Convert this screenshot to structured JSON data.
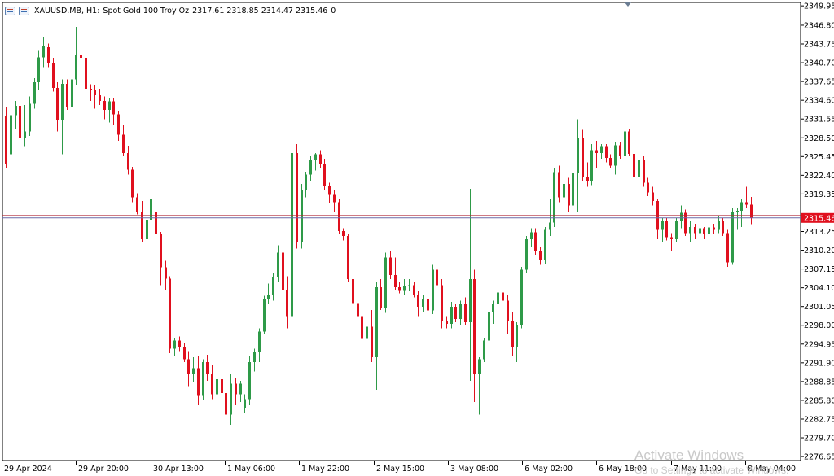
{
  "header": {
    "symbol": "XAUUSD.MB, H1:",
    "description": "Spot Gold 100 Troy Oz",
    "ohlc": "2317.61 2318.85 2314.47 2315.46",
    "volume": "0"
  },
  "watermark": {
    "line1": "Activate Windows",
    "line2": "Go to Settings to activate Windows."
  },
  "colors": {
    "bull": "#2e9a48",
    "bear": "#e0101e",
    "bid_line": "#6a6aa8",
    "ask_line": "#b02a3a",
    "price_tag": "#e0101e"
  },
  "chart_data": {
    "type": "candlestick",
    "symbol": "XAUUSD.MB",
    "timeframe": "H1",
    "ylim": [
      2276.0,
      2350.5
    ],
    "y_ticks": [
      2349.95,
      2346.8,
      2343.75,
      2340.7,
      2337.65,
      2334.6,
      2331.55,
      2328.5,
      2325.45,
      2322.4,
      2319.35,
      2313.25,
      2310.2,
      2307.15,
      2304.1,
      2301.05,
      2298.0,
      2294.95,
      2291.9,
      2288.85,
      2285.8,
      2282.75,
      2279.7,
      2276.65
    ],
    "x_labels": [
      "29 Apr 2024",
      "29 Apr 20:00",
      "30 Apr 13:00",
      "1 May 06:00",
      "1 May 22:00",
      "2 May 15:00",
      "3 May 08:00",
      "6 May 02:00",
      "6 May 18:00",
      "7 May 11:00",
      "8 May 04:00"
    ],
    "last_price": "2315.46",
    "bid": 2315.46,
    "ask": 2315.85,
    "ohlc": [
      [
        2332.0,
        2333.5,
        2323.5,
        2324.3
      ],
      [
        2325.8,
        2333.1,
        2325.0,
        2332.2
      ],
      [
        2332.2,
        2334.5,
        2330.0,
        2333.7
      ],
      [
        2333.7,
        2334.2,
        2327.5,
        2328.4
      ],
      [
        2328.4,
        2333.8,
        2327.0,
        2329.5
      ],
      [
        2329.5,
        2335.2,
        2328.8,
        2334.0
      ],
      [
        2334.0,
        2338.2,
        2333.2,
        2337.5
      ],
      [
        2337.5,
        2342.6,
        2336.2,
        2341.6
      ],
      [
        2341.6,
        2344.8,
        2340.0,
        2343.5
      ],
      [
        2343.2,
        2343.8,
        2340.0,
        2340.6
      ],
      [
        2340.6,
        2341.5,
        2336.0,
        2336.6
      ],
      [
        2336.6,
        2337.5,
        2329.5,
        2331.3
      ],
      [
        2331.3,
        2338.0,
        2325.8,
        2337.3
      ],
      [
        2337.3,
        2338.0,
        2333.0,
        2333.5
      ],
      [
        2333.5,
        2338.5,
        2332.8,
        2338.0
      ],
      [
        2338.0,
        2346.5,
        2337.0,
        2342.0
      ],
      [
        2342.0,
        2346.8,
        2337.2,
        2341.5
      ],
      [
        2341.5,
        2342.0,
        2335.8,
        2336.5
      ],
      [
        2336.5,
        2337.2,
        2334.5,
        2336.3
      ],
      [
        2336.3,
        2337.0,
        2333.2,
        2335.4
      ],
      [
        2335.4,
        2336.5,
        2333.8,
        2334.5
      ],
      [
        2334.5,
        2335.2,
        2331.5,
        2333.0
      ],
      [
        2333.0,
        2335.0,
        2331.0,
        2334.4
      ],
      [
        2334.4,
        2335.0,
        2330.5,
        2332.3
      ],
      [
        2332.3,
        2332.8,
        2328.0,
        2329.0
      ],
      [
        2329.0,
        2330.5,
        2325.5,
        2326.0
      ],
      [
        2326.0,
        2327.2,
        2322.5,
        2323.3
      ],
      [
        2323.3,
        2323.8,
        2318.0,
        2318.8
      ],
      [
        2318.8,
        2319.5,
        2316.0,
        2316.5
      ],
      [
        2316.5,
        2318.2,
        2311.5,
        2312.0
      ],
      [
        2312.0,
        2315.8,
        2311.2,
        2315.2
      ],
      [
        2315.2,
        2319.0,
        2314.0,
        2318.5
      ],
      [
        2316.5,
        2318.5,
        2312.0,
        2312.8
      ],
      [
        2312.8,
        2313.2,
        2304.5,
        2307.4
      ],
      [
        2307.4,
        2308.5,
        2303.8,
        2305.6
      ],
      [
        2305.6,
        2306.0,
        2293.5,
        2294.2
      ],
      [
        2294.2,
        2296.0,
        2293.0,
        2295.5
      ],
      [
        2295.5,
        2296.2,
        2293.8,
        2294.5
      ],
      [
        2294.5,
        2295.2,
        2292.0,
        2292.5
      ],
      [
        2292.5,
        2293.8,
        2288.0,
        2290.0
      ],
      [
        2290.0,
        2292.8,
        2288.8,
        2291.0
      ],
      [
        2291.0,
        2293.0,
        2285.0,
        2286.5
      ],
      [
        2286.5,
        2292.5,
        2285.8,
        2292.0
      ],
      [
        2292.0,
        2293.2,
        2289.0,
        2290.0
      ],
      [
        2290.0,
        2291.5,
        2286.0,
        2286.8
      ],
      [
        2286.8,
        2289.8,
        2286.5,
        2289.2
      ],
      [
        2289.2,
        2289.5,
        2285.5,
        2287.0
      ],
      [
        2287.0,
        2287.5,
        2282.0,
        2283.5
      ],
      [
        2283.5,
        2290.0,
        2281.8,
        2288.5
      ],
      [
        2288.5,
        2289.5,
        2285.0,
        2286.8
      ],
      [
        2286.8,
        2289.0,
        2285.5,
        2288.5
      ],
      [
        2284.5,
        2286.8,
        2283.8,
        2286.0
      ],
      [
        2286.0,
        2293.0,
        2285.0,
        2292.0
      ],
      [
        2292.0,
        2294.2,
        2290.5,
        2293.6
      ],
      [
        2293.6,
        2297.5,
        2292.0,
        2297.0
      ],
      [
        2297.0,
        2302.8,
        2296.5,
        2302.2
      ],
      [
        2302.2,
        2304.8,
        2301.5,
        2303.0
      ],
      [
        2303.0,
        2306.5,
        2302.0,
        2305.8
      ],
      [
        2305.8,
        2311.0,
        2305.0,
        2309.8
      ],
      [
        2309.8,
        2310.5,
        2303.0,
        2303.8
      ],
      [
        2303.8,
        2306.0,
        2297.5,
        2299.5
      ],
      [
        2299.5,
        2328.5,
        2298.8,
        2326.0
      ],
      [
        2326.0,
        2327.5,
        2310.5,
        2311.5
      ],
      [
        2311.5,
        2321.0,
        2310.5,
        2320.0
      ],
      [
        2320.0,
        2323.0,
        2318.8,
        2322.5
      ],
      [
        2322.5,
        2325.5,
        2321.5,
        2324.8
      ],
      [
        2324.8,
        2326.0,
        2323.2,
        2325.8
      ],
      [
        2325.8,
        2326.5,
        2323.5,
        2324.2
      ],
      [
        2324.2,
        2325.0,
        2320.0,
        2320.6
      ],
      [
        2320.6,
        2321.2,
        2317.8,
        2319.2
      ],
      [
        2319.2,
        2320.0,
        2316.5,
        2318.0
      ],
      [
        2318.0,
        2318.5,
        2312.8,
        2313.3
      ],
      [
        2313.3,
        2313.8,
        2311.8,
        2312.5
      ],
      [
        2312.5,
        2312.8,
        2305.0,
        2305.5
      ],
      [
        2305.5,
        2306.0,
        2300.8,
        2301.6
      ],
      [
        2301.6,
        2302.5,
        2298.5,
        2299.5
      ],
      [
        2299.5,
        2300.0,
        2295.0,
        2295.8
      ],
      [
        2295.8,
        2298.5,
        2294.0,
        2297.8
      ],
      [
        2297.8,
        2300.5,
        2292.0,
        2292.8
      ],
      [
        2292.8,
        2305.0,
        2287.5,
        2304.2
      ],
      [
        2304.2,
        2305.5,
        2300.5,
        2300.9
      ],
      [
        2300.9,
        2309.8,
        2300.0,
        2309.0
      ],
      [
        2309.0,
        2310.0,
        2305.5,
        2306.2
      ],
      [
        2306.2,
        2309.0,
        2303.8,
        2304.2
      ],
      [
        2304.2,
        2305.0,
        2303.2,
        2303.6
      ],
      [
        2303.6,
        2305.5,
        2303.0,
        2304.4
      ],
      [
        2304.4,
        2305.5,
        2303.5,
        2304.5
      ],
      [
        2304.5,
        2305.0,
        2302.5,
        2303.0
      ],
      [
        2303.0,
        2303.5,
        2299.5,
        2301.0
      ],
      [
        2301.0,
        2303.0,
        2300.2,
        2302.2
      ],
      [
        2302.2,
        2302.6,
        2300.0,
        2300.4
      ],
      [
        2300.4,
        2307.8,
        2299.8,
        2307.0
      ],
      [
        2307.0,
        2308.5,
        2303.5,
        2304.5
      ],
      [
        2304.5,
        2305.5,
        2297.5,
        2298.6
      ],
      [
        2298.6,
        2299.5,
        2297.5,
        2298.2
      ],
      [
        2298.2,
        2301.8,
        2297.5,
        2301.0
      ],
      [
        2301.0,
        2301.5,
        2298.5,
        2299.0
      ],
      [
        2299.0,
        2302.0,
        2298.0,
        2301.5
      ],
      [
        2301.5,
        2302.5,
        2298.0,
        2298.5
      ],
      [
        2298.5,
        2320.2,
        2289.0,
        2305.5
      ],
      [
        2305.5,
        2307.0,
        2285.5,
        2290.0
      ],
      [
        2290.0,
        2292.8,
        2283.5,
        2292.5
      ],
      [
        2292.5,
        2296.0,
        2292.0,
        2295.5
      ],
      [
        2295.5,
        2301.2,
        2294.5,
        2300.2
      ],
      [
        2300.2,
        2302.0,
        2298.2,
        2301.5
      ],
      [
        2301.5,
        2303.8,
        2301.0,
        2303.3
      ],
      [
        2303.3,
        2304.5,
        2300.5,
        2302.0
      ],
      [
        2302.0,
        2303.0,
        2296.5,
        2298.6
      ],
      [
        2298.6,
        2300.2,
        2293.0,
        2294.5
      ],
      [
        2294.5,
        2298.5,
        2292.0,
        2298.0
      ],
      [
        2298.0,
        2307.5,
        2297.5,
        2307.0
      ],
      [
        2307.0,
        2312.5,
        2306.5,
        2312.0
      ],
      [
        2312.0,
        2313.8,
        2310.8,
        2313.1
      ],
      [
        2313.1,
        2313.8,
        2309.5,
        2310.0
      ],
      [
        2310.0,
        2310.8,
        2307.8,
        2308.6
      ],
      [
        2308.6,
        2314.0,
        2308.0,
        2313.5
      ],
      [
        2313.5,
        2318.5,
        2312.5,
        2314.7
      ],
      [
        2314.7,
        2323.5,
        2314.0,
        2322.8
      ],
      [
        2322.8,
        2324.0,
        2318.0,
        2318.8
      ],
      [
        2318.8,
        2321.5,
        2317.8,
        2321.0
      ],
      [
        2321.0,
        2322.0,
        2316.5,
        2317.5
      ],
      [
        2317.5,
        2323.5,
        2317.0,
        2322.7
      ],
      [
        2322.7,
        2331.5,
        2316.5,
        2328.5
      ],
      [
        2328.5,
        2329.8,
        2321.5,
        2322.2
      ],
      [
        2322.2,
        2324.5,
        2320.5,
        2321.5
      ],
      [
        2321.5,
        2327.5,
        2320.8,
        2326.5
      ],
      [
        2326.5,
        2328.0,
        2323.5,
        2326.0
      ],
      [
        2326.0,
        2327.5,
        2325.0,
        2327.0
      ],
      [
        2327.0,
        2327.5,
        2324.5,
        2325.2
      ],
      [
        2325.2,
        2325.8,
        2323.5,
        2324.0
      ],
      [
        2324.0,
        2327.8,
        2322.5,
        2327.3
      ],
      [
        2327.3,
        2327.8,
        2325.0,
        2325.5
      ],
      [
        2325.5,
        2330.0,
        2325.0,
        2329.5
      ],
      [
        2329.5,
        2330.0,
        2325.5,
        2325.9
      ],
      [
        2325.9,
        2326.2,
        2321.5,
        2322.2
      ],
      [
        2322.2,
        2325.5,
        2321.0,
        2324.8
      ],
      [
        2324.8,
        2325.5,
        2320.5,
        2321.2
      ],
      [
        2321.2,
        2322.0,
        2319.0,
        2319.6
      ],
      [
        2319.6,
        2320.5,
        2317.5,
        2318.2
      ],
      [
        2318.2,
        2318.5,
        2312.0,
        2313.5
      ],
      [
        2313.5,
        2315.5,
        2311.5,
        2315.0
      ],
      [
        2315.0,
        2315.5,
        2311.8,
        2312.3
      ],
      [
        2312.3,
        2313.0,
        2310.0,
        2312.0
      ],
      [
        2312.0,
        2315.5,
        2311.5,
        2315.0
      ],
      [
        2315.0,
        2317.5,
        2313.8,
        2316.3
      ],
      [
        2316.3,
        2316.8,
        2312.5,
        2313.0
      ],
      [
        2313.0,
        2315.0,
        2311.5,
        2314.0
      ],
      [
        2314.0,
        2314.5,
        2312.0,
        2313.0
      ],
      [
        2313.0,
        2314.0,
        2311.8,
        2313.8
      ],
      [
        2313.8,
        2314.0,
        2312.0,
        2312.8
      ],
      [
        2312.8,
        2314.2,
        2312.0,
        2313.9
      ],
      [
        2313.9,
        2314.5,
        2312.8,
        2313.5
      ],
      [
        2313.5,
        2315.8,
        2313.0,
        2315.0
      ],
      [
        2315.0,
        2315.5,
        2312.5,
        2313.0
      ],
      [
        2313.0,
        2313.5,
        2307.5,
        2308.2
      ],
      [
        2308.2,
        2317.0,
        2307.8,
        2316.4
      ],
      [
        2316.4,
        2317.0,
        2313.5,
        2316.6
      ],
      [
        2316.6,
        2318.5,
        2314.0,
        2318.0
      ],
      [
        2318.0,
        2320.5,
        2317.0,
        2317.61
      ],
      [
        2317.61,
        2318.85,
        2314.47,
        2315.46
      ]
    ]
  }
}
